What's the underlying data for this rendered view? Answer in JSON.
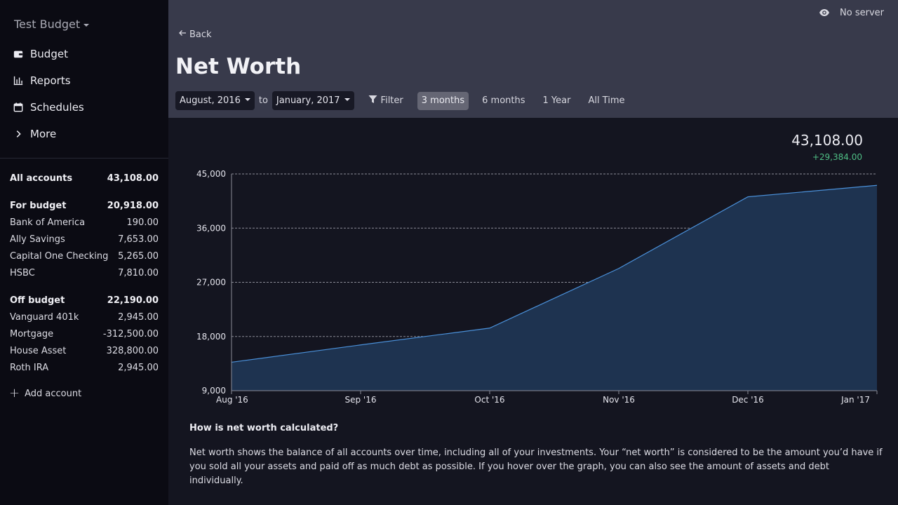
{
  "sidebar": {
    "budget_name": "Test Budget",
    "nav": [
      {
        "label": "Budget",
        "icon": "wallet-icon"
      },
      {
        "label": "Reports",
        "icon": "bar-chart-icon"
      },
      {
        "label": "Schedules",
        "icon": "calendar-icon"
      },
      {
        "label": "More",
        "icon": "chevron-right-icon"
      }
    ],
    "all_accounts": {
      "label": "All accounts",
      "balance": "43,108.00"
    },
    "for_budget": {
      "label": "For budget",
      "balance": "20,918.00",
      "accounts": [
        {
          "name": "Bank of America",
          "balance": "190.00"
        },
        {
          "name": "Ally Savings",
          "balance": "7,653.00"
        },
        {
          "name": "Capital One Checking",
          "balance": "5,265.00"
        },
        {
          "name": "HSBC",
          "balance": "7,810.00"
        }
      ]
    },
    "off_budget": {
      "label": "Off budget",
      "balance": "22,190.00",
      "accounts": [
        {
          "name": "Vanguard 401k",
          "balance": "2,945.00"
        },
        {
          "name": "Mortgage",
          "balance": "-312,500.00"
        },
        {
          "name": "House Asset",
          "balance": "328,800.00"
        },
        {
          "name": "Roth IRA",
          "balance": "2,945.00"
        }
      ]
    },
    "add_account": "Add account"
  },
  "header": {
    "server_status": "No server",
    "back": "Back",
    "title": "Net Worth",
    "start_month": "August, 2016",
    "to": "to",
    "end_month": "January, 2017",
    "filter": "Filter",
    "ranges": [
      "3 months",
      "6 months",
      "1 Year",
      "All Time"
    ],
    "active_range": "3 months"
  },
  "summary": {
    "net_worth": "43,108.00",
    "change": "+29,384.00"
  },
  "colors": {
    "line": "#4a90d9",
    "area": "#1e3350",
    "positive": "#4fbf85"
  },
  "chart_data": {
    "type": "area",
    "categories": [
      "Aug '16",
      "Sep '16",
      "Oct '16",
      "Nov '16",
      "Dec '16",
      "Jan '17"
    ],
    "values": [
      13724,
      16600,
      19400,
      29300,
      41200,
      43108
    ],
    "y_ticks": [
      "9,000",
      "18,000",
      "27,000",
      "36,000",
      "45,000"
    ],
    "ylim": [
      9000,
      45000
    ],
    "grid": true
  },
  "info": {
    "title": "How is net worth calculated?",
    "body": "Net worth shows the balance of all accounts over time, including all of your investments. Your “net worth” is considered to be the amount you’d have if you sold all your assets and paid off as much debt as possible. If you hover over the graph, you can also see the amount of assets and debt individually."
  }
}
